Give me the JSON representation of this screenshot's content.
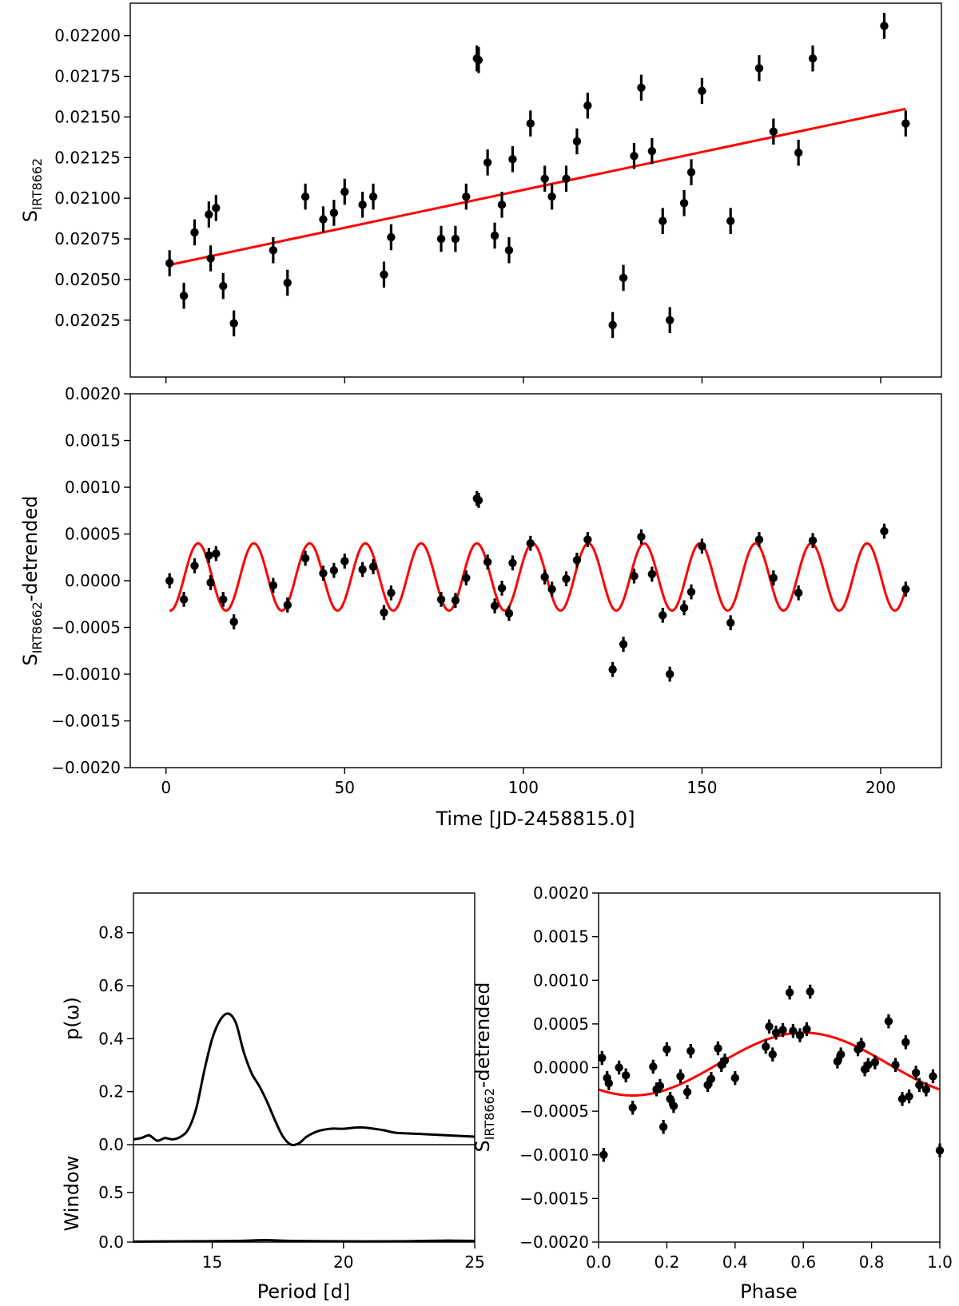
{
  "chart_data": [
    {
      "panel": "top",
      "type": "scatter",
      "ylabel_main": "S",
      "ylabel_sub": "IRT8662",
      "xlim": [
        -10,
        217
      ],
      "ylim": [
        0.0199,
        0.0222
      ],
      "yticks": [
        0.02025,
        0.0205,
        0.02075,
        0.021,
        0.02125,
        0.0215,
        0.02175,
        0.022
      ],
      "ytick_labels": [
        "0.02025",
        "0.02050",
        "0.02075",
        "0.02100",
        "0.02125",
        "0.02150",
        "0.02175",
        "0.02200"
      ],
      "xticks": [
        0,
        50,
        100,
        150,
        200
      ],
      "error": 8e-05,
      "series": [
        {
          "name": "observations",
          "color": "#000000",
          "x": [
            1,
            5,
            8,
            12,
            12.5,
            14,
            16,
            19,
            30,
            34,
            39,
            44,
            47,
            50,
            55,
            58,
            61,
            63,
            77,
            81,
            84,
            87,
            87.5,
            90,
            92,
            94,
            96,
            97,
            102,
            106,
            108,
            112,
            115,
            118,
            125,
            128,
            131,
            133,
            136,
            139,
            141,
            145,
            147,
            150,
            158,
            166,
            170,
            177,
            181,
            201,
            207
          ],
          "y": [
            0.0206,
            0.0204,
            0.02079,
            0.0209,
            0.02063,
            0.02094,
            0.02046,
            0.02023,
            0.02068,
            0.02048,
            0.02101,
            0.02087,
            0.02091,
            0.02104,
            0.02096,
            0.02101,
            0.02053,
            0.02076,
            0.02075,
            0.02075,
            0.02101,
            0.02186,
            0.02185,
            0.02122,
            0.02077,
            0.02096,
            0.02068,
            0.02124,
            0.02146,
            0.02112,
            0.02101,
            0.02112,
            0.02135,
            0.02157,
            0.02022,
            0.02051,
            0.02126,
            0.02168,
            0.02129,
            0.02086,
            0.02025,
            0.02097,
            0.02116,
            0.02166,
            0.02086,
            0.0218,
            0.02141,
            0.02128,
            0.02186,
            0.02206,
            0.02146
          ]
        },
        {
          "name": "linear fit",
          "color": "#ff0000",
          "x": [
            1,
            207
          ],
          "y": [
            0.02059,
            0.02155
          ]
        }
      ]
    },
    {
      "panel": "middle",
      "type": "scatter",
      "xlabel": "Time [JD-2458815.0]",
      "ylabel_main": "S",
      "ylabel_sub": "IRT8662",
      "ylabel_suffix": "-detrended",
      "xlim": [
        -10,
        217
      ],
      "ylim": [
        -0.002,
        0.002
      ],
      "xticks": [
        0,
        50,
        100,
        150,
        200
      ],
      "xtick_labels": [
        "0",
        "50",
        "100",
        "150",
        "200"
      ],
      "yticks": [
        -0.002,
        -0.0015,
        -0.001,
        -0.0005,
        0,
        0.0005,
        0.001,
        0.0015,
        0.002
      ],
      "ytick_labels": [
        "−0.0020",
        "−0.0015",
        "−0.0010",
        "−0.0005",
        "0.0000",
        "0.0005",
        "0.0010",
        "0.0015",
        "0.0020"
      ],
      "error": 8e-05,
      "series": [
        {
          "name": "detrended observations",
          "color": "#000000",
          "x": [
            1,
            5,
            8,
            12,
            12.5,
            14,
            16,
            19,
            30,
            34,
            39,
            44,
            47,
            50,
            55,
            58,
            61,
            63,
            77,
            81,
            84,
            87,
            87.5,
            90,
            92,
            94,
            96,
            97,
            102,
            106,
            108,
            112,
            115,
            118,
            125,
            128,
            131,
            133,
            136,
            139,
            141,
            145,
            147,
            150,
            158,
            166,
            170,
            177,
            181,
            201,
            207
          ],
          "y": [
            0.0,
            -0.0002,
            0.00016,
            0.00027,
            -2e-05,
            0.00029,
            -0.0002,
            -0.00044,
            -5e-05,
            -0.00026,
            0.00024,
            8e-05,
            0.00011,
            0.00021,
            0.00012,
            0.00015,
            -0.00034,
            -0.00013,
            -0.0002,
            -0.00021,
            3e-05,
            0.00088,
            0.00086,
            0.0002,
            -0.00027,
            -8e-05,
            -0.00035,
            0.00019,
            0.0004,
            4e-05,
            -9e-05,
            2e-05,
            0.00022,
            0.00044,
            -0.00095,
            -0.00068,
            5e-05,
            0.00047,
            7e-05,
            -0.00037,
            -0.001,
            -0.00029,
            -0.00012,
            0.00037,
            -0.00045,
            0.00044,
            3e-05,
            -0.00013,
            0.00043,
            0.00053,
            -9e-05
          ]
        },
        {
          "name": "sinusoid fit",
          "color": "#ff0000",
          "period": 15.6,
          "amplitude": 0.00036,
          "offset": 4e-05,
          "phase_zero": 5.1,
          "x_range": [
            1,
            207
          ]
        }
      ]
    },
    {
      "panel": "bottom-left",
      "type": "line",
      "xlabel": "Period [d]",
      "ylabel_top": "p(ω)",
      "ylabel_bottom": "Window",
      "xlim": [
        12,
        25
      ],
      "xticks": [
        15,
        20,
        25
      ],
      "xtick_labels": [
        "15",
        "20",
        "25"
      ],
      "ylim_top": [
        0,
        0.95
      ],
      "ylim_bottom": [
        0,
        0.95
      ],
      "yticks_top": [
        0.0,
        0.2,
        0.4,
        0.6,
        0.8
      ],
      "ytick_labels_top": [
        "0.0",
        "0.2",
        "0.4",
        "0.6",
        "0.8"
      ],
      "yticks_bottom": [
        0.0,
        0.5
      ],
      "ytick_labels_bottom": [
        "0.0",
        "0.5"
      ],
      "series": [
        {
          "name": "periodogram",
          "color": "#000000",
          "x": [
            12,
            12.3,
            12.6,
            12.9,
            13.2,
            13.5,
            13.8,
            14.1,
            14.4,
            14.7,
            15.0,
            15.3,
            15.6,
            15.9,
            16.2,
            16.5,
            16.8,
            17.1,
            17.4,
            17.7,
            18.0,
            18.3,
            18.6,
            19.0,
            19.5,
            20.0,
            20.7,
            21.5,
            22.0,
            23.0,
            24.0,
            25.0
          ],
          "y": [
            0.02,
            0.025,
            0.035,
            0.015,
            0.025,
            0.02,
            0.03,
            0.06,
            0.14,
            0.28,
            0.4,
            0.47,
            0.495,
            0.46,
            0.35,
            0.27,
            0.22,
            0.16,
            0.09,
            0.03,
            0.0,
            0.005,
            0.03,
            0.05,
            0.06,
            0.06,
            0.065,
            0.055,
            0.045,
            0.04,
            0.035,
            0.03
          ]
        },
        {
          "name": "window",
          "color": "#000000",
          "x": [
            12,
            14,
            16,
            17,
            18,
            20,
            22,
            23,
            24,
            25
          ],
          "y": [
            0.005,
            0.008,
            0.012,
            0.02,
            0.012,
            0.008,
            0.008,
            0.012,
            0.015,
            0.012
          ]
        }
      ]
    },
    {
      "panel": "bottom-right",
      "type": "scatter",
      "xlabel": "Phase",
      "ylabel_main": "S",
      "ylabel_sub": "IRT8662",
      "ylabel_suffix": "-detrended",
      "xlim": [
        0,
        1
      ],
      "ylim": [
        -0.002,
        0.002
      ],
      "xticks": [
        0,
        0.2,
        0.4,
        0.6,
        0.8,
        1.0
      ],
      "xtick_labels": [
        "0.0",
        "0.2",
        "0.4",
        "0.6",
        "0.8",
        "1.0"
      ],
      "yticks": [
        -0.002,
        -0.0015,
        -0.001,
        -0.0005,
        0,
        0.0005,
        0.001,
        0.0015,
        0.002
      ],
      "ytick_labels": [
        "−0.0020",
        "−0.0015",
        "−0.0010",
        "−0.0005",
        "0.0000",
        "0.0005",
        "0.0010",
        "0.0015",
        "0.0020"
      ],
      "error": 8e-05,
      "series": [
        {
          "name": "phased observations",
          "color": "#000000",
          "x": [
            0.01,
            0.015,
            0.025,
            0.03,
            0.06,
            0.08,
            0.1,
            0.16,
            0.17,
            0.18,
            0.19,
            0.2,
            0.21,
            0.22,
            0.24,
            0.26,
            0.27,
            0.32,
            0.33,
            0.35,
            0.36,
            0.37,
            0.4,
            0.49,
            0.5,
            0.51,
            0.52,
            0.54,
            0.56,
            0.57,
            0.59,
            0.61,
            0.62,
            0.7,
            0.71,
            0.76,
            0.77,
            0.78,
            0.79,
            0.81,
            0.85,
            0.87,
            0.89,
            0.9,
            0.91,
            0.93,
            0.94,
            0.96,
            0.98,
            1.0
          ],
          "y": [
            0.00011,
            -0.001,
            -0.00012,
            -0.00018,
            0.0,
            -9e-05,
            -0.00046,
            1e-05,
            -0.00025,
            -0.00021,
            -0.00068,
            0.00021,
            -0.00036,
            -0.00044,
            -0.0001,
            -0.00028,
            0.00019,
            -0.0002,
            -0.00013,
            0.00022,
            3e-05,
            8e-05,
            -0.00012,
            0.00024,
            0.00047,
            0.00015,
            0.0004,
            0.00043,
            0.00086,
            0.00042,
            0.00037,
            0.00044,
            0.00087,
            7e-05,
            0.00015,
            0.00021,
            0.00026,
            -2e-05,
            3e-05,
            6e-05,
            0.00053,
            3e-05,
            -0.00036,
            0.00029,
            -0.00033,
            -6e-05,
            -0.0002,
            -0.00025,
            -0.0001,
            -0.00095
          ]
        },
        {
          "name": "sinusoid fit",
          "color": "#ff0000",
          "amplitude": 0.00036,
          "offset": 4e-05,
          "phase_peak": 0.6
        }
      ]
    }
  ]
}
